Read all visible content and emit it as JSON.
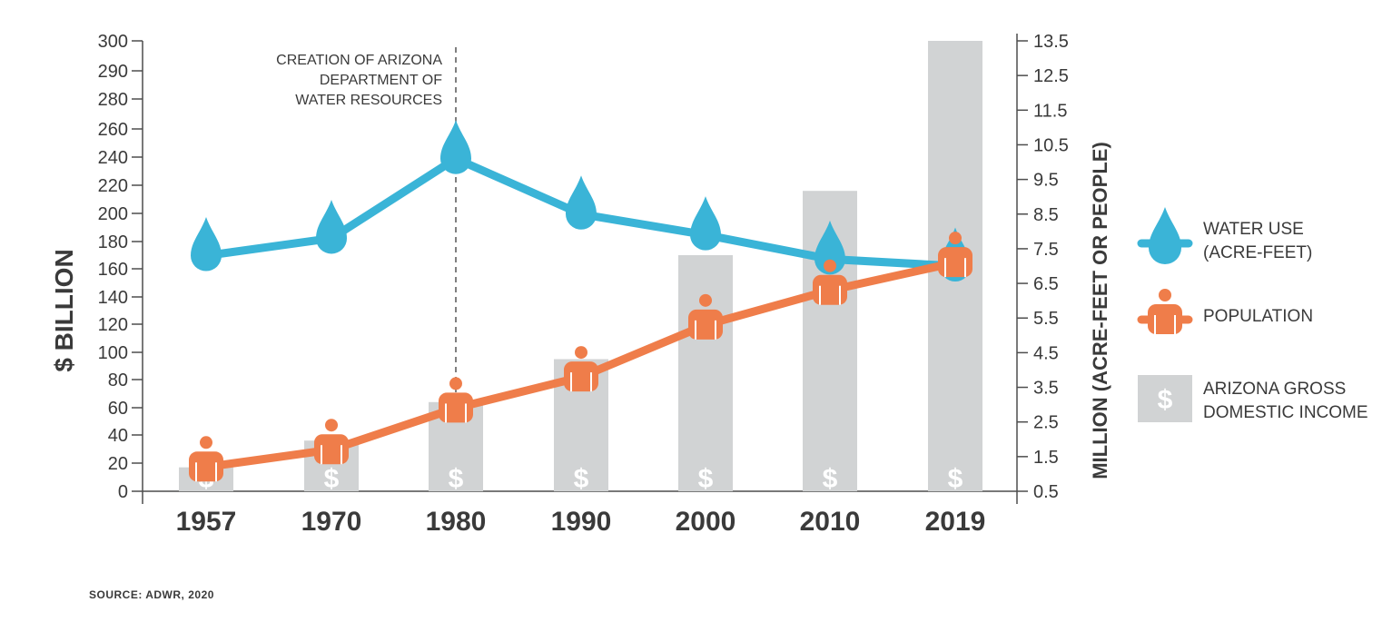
{
  "chart_data": {
    "type": "bar",
    "categories": [
      "1957",
      "1970",
      "1980",
      "1990",
      "2000",
      "2010",
      "2019"
    ],
    "ylabel_left": "$ BILLION",
    "ylabel_right": "MILLION (ACRE-FEET OR PEOPLE)",
    "ylim_left": [
      0,
      300
    ],
    "yticks_left": [
      0,
      20,
      40,
      60,
      80,
      100,
      120,
      140,
      160,
      180,
      200,
      220,
      240,
      260,
      280,
      290,
      300
    ],
    "ylim_right": [
      0.5,
      13.5
    ],
    "yticks_right": [
      0.5,
      1.5,
      2.5,
      3.5,
      4.5,
      5.5,
      6.5,
      7.5,
      8.5,
      9.5,
      10.5,
      11.5,
      12.5,
      13.5
    ],
    "series": [
      {
        "name": "ARIZONA GROSS DOMESTIC INCOME",
        "kind": "bar",
        "axis": "left",
        "color": "#d1d3d4",
        "values": [
          17,
          36,
          64,
          95,
          170,
          216,
          301
        ]
      },
      {
        "name": "WATER USE (ACRE-FEET)",
        "kind": "line",
        "axis": "right",
        "color": "#3ab4d7",
        "values": [
          7.3,
          7.8,
          10.1,
          8.5,
          7.9,
          7.2,
          7.0
        ]
      },
      {
        "name": "POPULATION",
        "kind": "line",
        "axis": "right",
        "color": "#ef7d4a",
        "values": [
          1.2,
          1.7,
          2.9,
          3.8,
          5.3,
          6.3,
          7.1
        ]
      }
    ],
    "annotation": {
      "category": "1980",
      "lines": [
        "CREATION OF ARIZONA",
        "DEPARTMENT OF",
        "WATER RESOURCES"
      ]
    },
    "legend": {
      "placement": "right",
      "items": [
        {
          "key": "water",
          "lines": [
            "WATER USE",
            "(ACRE-FEET)"
          ]
        },
        {
          "key": "population",
          "lines": [
            "POPULATION"
          ]
        },
        {
          "key": "gdi",
          "lines": [
            "ARIZONA GROSS",
            "DOMESTIC INCOME"
          ]
        }
      ]
    },
    "bar_symbol": "$",
    "grid": false
  },
  "source": "SOURCE: ADWR, 2020"
}
